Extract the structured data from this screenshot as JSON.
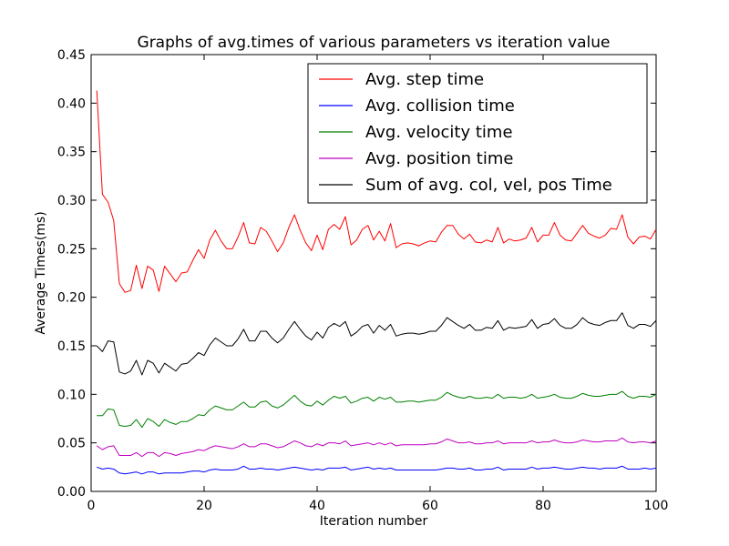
{
  "chart_data": {
    "type": "line",
    "title": "Graphs of avg.times of various parameters vs iteration value",
    "xlabel": "Iteration number",
    "ylabel": "Average Times(ms)",
    "xlim": [
      0,
      100
    ],
    "ylim": [
      0,
      0.45
    ],
    "grid": false,
    "legend_position": "top-right",
    "x_ticks": [
      "0",
      "20",
      "40",
      "60",
      "80",
      "100"
    ],
    "y_ticks": [
      "0.00",
      "0.05",
      "0.10",
      "0.15",
      "0.20",
      "0.25",
      "0.30",
      "0.35",
      "0.40",
      "0.45"
    ],
    "x": [
      1,
      2,
      3,
      4,
      5,
      6,
      7,
      8,
      9,
      10,
      11,
      12,
      13,
      14,
      15,
      16,
      17,
      18,
      19,
      20,
      21,
      22,
      23,
      24,
      25,
      26,
      27,
      28,
      29,
      30,
      31,
      32,
      33,
      34,
      35,
      36,
      37,
      38,
      39,
      40,
      41,
      42,
      43,
      44,
      45,
      46,
      47,
      48,
      49,
      50,
      51,
      52,
      53,
      54,
      55,
      56,
      57,
      58,
      59,
      60,
      61,
      62,
      63,
      64,
      65,
      66,
      67,
      68,
      69,
      70,
      71,
      72,
      73,
      74,
      75,
      76,
      77,
      78,
      79,
      80,
      81,
      82,
      83,
      84,
      85,
      86,
      87,
      88,
      89,
      90,
      91,
      92,
      93,
      94,
      95,
      96,
      97,
      98,
      99,
      100
    ],
    "series": [
      {
        "name": "Avg. step time",
        "color": "#ff0000",
        "values": [
          0.413,
          0.306,
          0.298,
          0.279,
          0.214,
          0.205,
          0.207,
          0.233,
          0.209,
          0.232,
          0.228,
          0.206,
          0.232,
          0.224,
          0.216,
          0.225,
          0.226,
          0.238,
          0.249,
          0.24,
          0.259,
          0.269,
          0.258,
          0.25,
          0.25,
          0.262,
          0.277,
          0.256,
          0.255,
          0.272,
          0.268,
          0.258,
          0.247,
          0.256,
          0.272,
          0.285,
          0.269,
          0.256,
          0.248,
          0.264,
          0.249,
          0.27,
          0.275,
          0.27,
          0.283,
          0.254,
          0.259,
          0.27,
          0.274,
          0.259,
          0.268,
          0.258,
          0.276,
          0.251,
          0.255,
          0.256,
          0.255,
          0.253,
          0.256,
          0.258,
          0.257,
          0.267,
          0.274,
          0.274,
          0.265,
          0.26,
          0.265,
          0.257,
          0.256,
          0.259,
          0.257,
          0.272,
          0.256,
          0.26,
          0.258,
          0.259,
          0.261,
          0.272,
          0.257,
          0.264,
          0.264,
          0.277,
          0.264,
          0.259,
          0.258,
          0.266,
          0.274,
          0.266,
          0.263,
          0.261,
          0.264,
          0.271,
          0.27,
          0.285,
          0.262,
          0.255,
          0.262,
          0.263,
          0.26,
          0.27
        ]
      },
      {
        "name": "Avg. collision time",
        "color": "#0000ff",
        "values": [
          0.025,
          0.023,
          0.024,
          0.023,
          0.019,
          0.018,
          0.019,
          0.02,
          0.018,
          0.02,
          0.02,
          0.018,
          0.019,
          0.019,
          0.019,
          0.019,
          0.02,
          0.021,
          0.021,
          0.02,
          0.022,
          0.023,
          0.022,
          0.022,
          0.022,
          0.023,
          0.026,
          0.023,
          0.023,
          0.024,
          0.023,
          0.023,
          0.022,
          0.023,
          0.024,
          0.025,
          0.024,
          0.023,
          0.022,
          0.023,
          0.022,
          0.024,
          0.024,
          0.024,
          0.025,
          0.022,
          0.023,
          0.024,
          0.025,
          0.023,
          0.024,
          0.023,
          0.024,
          0.022,
          0.022,
          0.022,
          0.022,
          0.022,
          0.022,
          0.022,
          0.022,
          0.023,
          0.024,
          0.024,
          0.023,
          0.023,
          0.024,
          0.022,
          0.022,
          0.023,
          0.023,
          0.025,
          0.022,
          0.023,
          0.023,
          0.023,
          0.023,
          0.025,
          0.023,
          0.024,
          0.024,
          0.025,
          0.024,
          0.023,
          0.023,
          0.024,
          0.025,
          0.024,
          0.024,
          0.023,
          0.024,
          0.024,
          0.024,
          0.026,
          0.023,
          0.023,
          0.023,
          0.024,
          0.023,
          0.024
        ]
      },
      {
        "name": "Avg. velocity time",
        "color": "#008000",
        "values": [
          0.078,
          0.078,
          0.085,
          0.084,
          0.068,
          0.067,
          0.068,
          0.074,
          0.066,
          0.075,
          0.072,
          0.067,
          0.074,
          0.071,
          0.069,
          0.072,
          0.072,
          0.075,
          0.079,
          0.078,
          0.084,
          0.088,
          0.086,
          0.084,
          0.084,
          0.088,
          0.092,
          0.087,
          0.087,
          0.092,
          0.093,
          0.088,
          0.086,
          0.089,
          0.094,
          0.099,
          0.093,
          0.089,
          0.088,
          0.093,
          0.089,
          0.094,
          0.098,
          0.096,
          0.098,
          0.091,
          0.093,
          0.096,
          0.097,
          0.093,
          0.097,
          0.095,
          0.097,
          0.092,
          0.092,
          0.093,
          0.093,
          0.092,
          0.093,
          0.094,
          0.094,
          0.097,
          0.102,
          0.099,
          0.097,
          0.096,
          0.098,
          0.096,
          0.096,
          0.097,
          0.096,
          0.1,
          0.096,
          0.097,
          0.097,
          0.096,
          0.097,
          0.1,
          0.096,
          0.097,
          0.098,
          0.1,
          0.097,
          0.096,
          0.096,
          0.098,
          0.101,
          0.099,
          0.098,
          0.098,
          0.099,
          0.1,
          0.1,
          0.103,
          0.098,
          0.096,
          0.098,
          0.098,
          0.097,
          0.1
        ]
      },
      {
        "name": "Avg. position time",
        "color": "#bf00bf",
        "values": [
          0.047,
          0.043,
          0.046,
          0.047,
          0.037,
          0.037,
          0.037,
          0.04,
          0.036,
          0.04,
          0.04,
          0.036,
          0.04,
          0.039,
          0.037,
          0.039,
          0.04,
          0.041,
          0.043,
          0.042,
          0.045,
          0.047,
          0.046,
          0.045,
          0.044,
          0.046,
          0.049,
          0.046,
          0.046,
          0.049,
          0.049,
          0.047,
          0.045,
          0.046,
          0.049,
          0.052,
          0.05,
          0.047,
          0.046,
          0.049,
          0.047,
          0.05,
          0.05,
          0.049,
          0.052,
          0.047,
          0.048,
          0.049,
          0.05,
          0.048,
          0.05,
          0.048,
          0.05,
          0.047,
          0.048,
          0.048,
          0.048,
          0.048,
          0.048,
          0.049,
          0.049,
          0.051,
          0.054,
          0.052,
          0.05,
          0.05,
          0.051,
          0.049,
          0.049,
          0.05,
          0.05,
          0.052,
          0.049,
          0.05,
          0.05,
          0.05,
          0.05,
          0.052,
          0.05,
          0.051,
          0.051,
          0.053,
          0.051,
          0.05,
          0.05,
          0.051,
          0.053,
          0.052,
          0.051,
          0.051,
          0.052,
          0.052,
          0.052,
          0.055,
          0.051,
          0.05,
          0.051,
          0.051,
          0.05,
          0.052
        ]
      },
      {
        "name": "Sum of avg. col, vel, pos Time",
        "color": "#000000",
        "values": [
          0.15,
          0.144,
          0.155,
          0.154,
          0.123,
          0.121,
          0.124,
          0.135,
          0.12,
          0.135,
          0.132,
          0.122,
          0.132,
          0.128,
          0.124,
          0.131,
          0.132,
          0.137,
          0.143,
          0.14,
          0.151,
          0.158,
          0.154,
          0.15,
          0.15,
          0.157,
          0.167,
          0.155,
          0.155,
          0.165,
          0.165,
          0.158,
          0.153,
          0.158,
          0.167,
          0.175,
          0.167,
          0.16,
          0.156,
          0.164,
          0.158,
          0.169,
          0.173,
          0.17,
          0.175,
          0.16,
          0.164,
          0.17,
          0.172,
          0.163,
          0.171,
          0.166,
          0.172,
          0.16,
          0.162,
          0.163,
          0.163,
          0.162,
          0.163,
          0.165,
          0.165,
          0.171,
          0.179,
          0.175,
          0.171,
          0.168,
          0.172,
          0.166,
          0.166,
          0.169,
          0.168,
          0.176,
          0.166,
          0.169,
          0.168,
          0.169,
          0.17,
          0.177,
          0.168,
          0.172,
          0.173,
          0.178,
          0.171,
          0.168,
          0.168,
          0.172,
          0.179,
          0.174,
          0.172,
          0.171,
          0.174,
          0.176,
          0.176,
          0.184,
          0.171,
          0.168,
          0.172,
          0.172,
          0.17,
          0.176
        ]
      }
    ]
  }
}
